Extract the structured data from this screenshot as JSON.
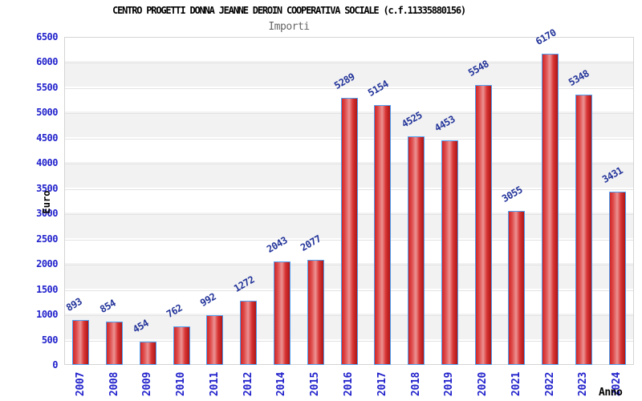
{
  "chart_data": {
    "type": "bar",
    "title": "CENTRO PROGETTI DONNA JEANNE DEROIN COOPERATIVA SOCIALE (c.f.11335880156)",
    "subtitle": "Importi",
    "xlabel": "Anno",
    "ylabel": "Euro",
    "categories": [
      "2007",
      "2008",
      "2009",
      "2010",
      "2011",
      "2012",
      "2014",
      "2015",
      "2016",
      "2017",
      "2018",
      "2019",
      "2020",
      "2021",
      "2022",
      "2023",
      "2024"
    ],
    "values": [
      893,
      854,
      454,
      762,
      992,
      1272,
      2043,
      2077,
      5289,
      5154,
      4525,
      4453,
      5548,
      3055,
      6170,
      5348,
      3431
    ],
    "ylim": [
      0,
      6500
    ],
    "ytick_step": 500,
    "grid": "horizontal",
    "legend": "none",
    "value_labels": "above bars, rotated 30deg",
    "x_tick_labels": "rotated 90deg, read bottom-to-top",
    "colors": {
      "bar_border": "#4f9ff0",
      "bar_gradient": [
        "#d02525",
        "#df4b4b",
        "#ec9292",
        "#d83434",
        "#ad1616"
      ],
      "axis_text": "#2222cc",
      "value_text": "#223399",
      "title_text": "#000000",
      "subtitle_text": "#666666",
      "plot_background": "#ffffff",
      "band_stripe": "#f2f2f2",
      "gridline": "#e3e3e3"
    }
  }
}
